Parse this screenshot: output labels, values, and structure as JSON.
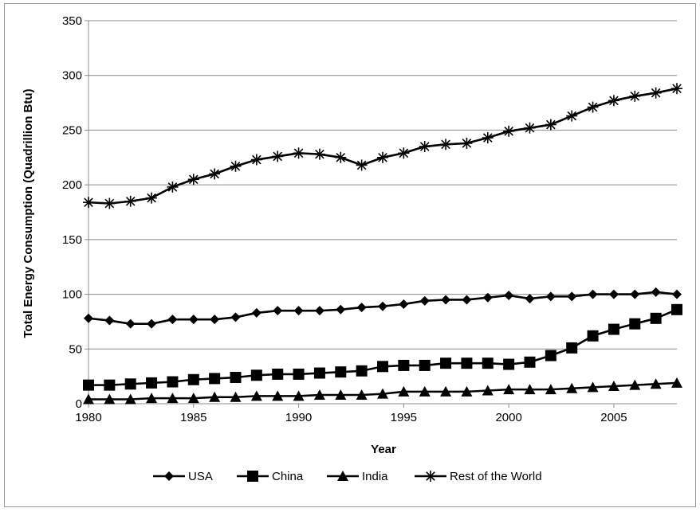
{
  "chart_data": {
    "type": "line",
    "title": "",
    "xlabel": "Year",
    "ylabel": "Total Energy Consumption (Quadrillion Btu)",
    "xlim": [
      1980,
      2008
    ],
    "ylim": [
      0,
      350
    ],
    "x_ticks": [
      "1980",
      "1985",
      "1990",
      "1995",
      "2000",
      "2005"
    ],
    "y_ticks": [
      "0",
      "50",
      "100",
      "150",
      "200",
      "250",
      "300",
      "350"
    ],
    "grid": "horizontal",
    "legend_position": "bottom",
    "x": [
      1980,
      1981,
      1982,
      1983,
      1984,
      1985,
      1986,
      1987,
      1988,
      1989,
      1990,
      1991,
      1992,
      1993,
      1994,
      1995,
      1996,
      1997,
      1998,
      1999,
      2000,
      2001,
      2002,
      2003,
      2004,
      2005,
      2006,
      2007,
      2008
    ],
    "series": [
      {
        "name": "USA",
        "marker": "diamond",
        "color": "#000000",
        "values": [
          78,
          76,
          73,
          73,
          77,
          77,
          77,
          79,
          83,
          85,
          85,
          85,
          86,
          88,
          89,
          91,
          94,
          95,
          95,
          97,
          99,
          96,
          98,
          98,
          100,
          100,
          100,
          102,
          100
        ]
      },
      {
        "name": "China",
        "marker": "square",
        "color": "#000000",
        "values": [
          17,
          17,
          18,
          19,
          20,
          22,
          23,
          24,
          26,
          27,
          27,
          28,
          29,
          30,
          34,
          35,
          35,
          37,
          37,
          37,
          36,
          38,
          44,
          51,
          62,
          68,
          73,
          78,
          86
        ]
      },
      {
        "name": "India",
        "marker": "triangle",
        "color": "#000000",
        "values": [
          4,
          4,
          4,
          5,
          5,
          5,
          6,
          6,
          7,
          7,
          7,
          8,
          8,
          8,
          9,
          11,
          11,
          11,
          11,
          12,
          13,
          13,
          13,
          14,
          15,
          16,
          17,
          18,
          19
        ]
      },
      {
        "name": "Rest of the World",
        "marker": "asterisk",
        "color": "#000000",
        "values": [
          184,
          183,
          185,
          188,
          198,
          205,
          210,
          217,
          223,
          226,
          229,
          228,
          225,
          218,
          225,
          229,
          235,
          237,
          238,
          243,
          249,
          252,
          255,
          263,
          271,
          277,
          281,
          284,
          288
        ]
      }
    ]
  }
}
